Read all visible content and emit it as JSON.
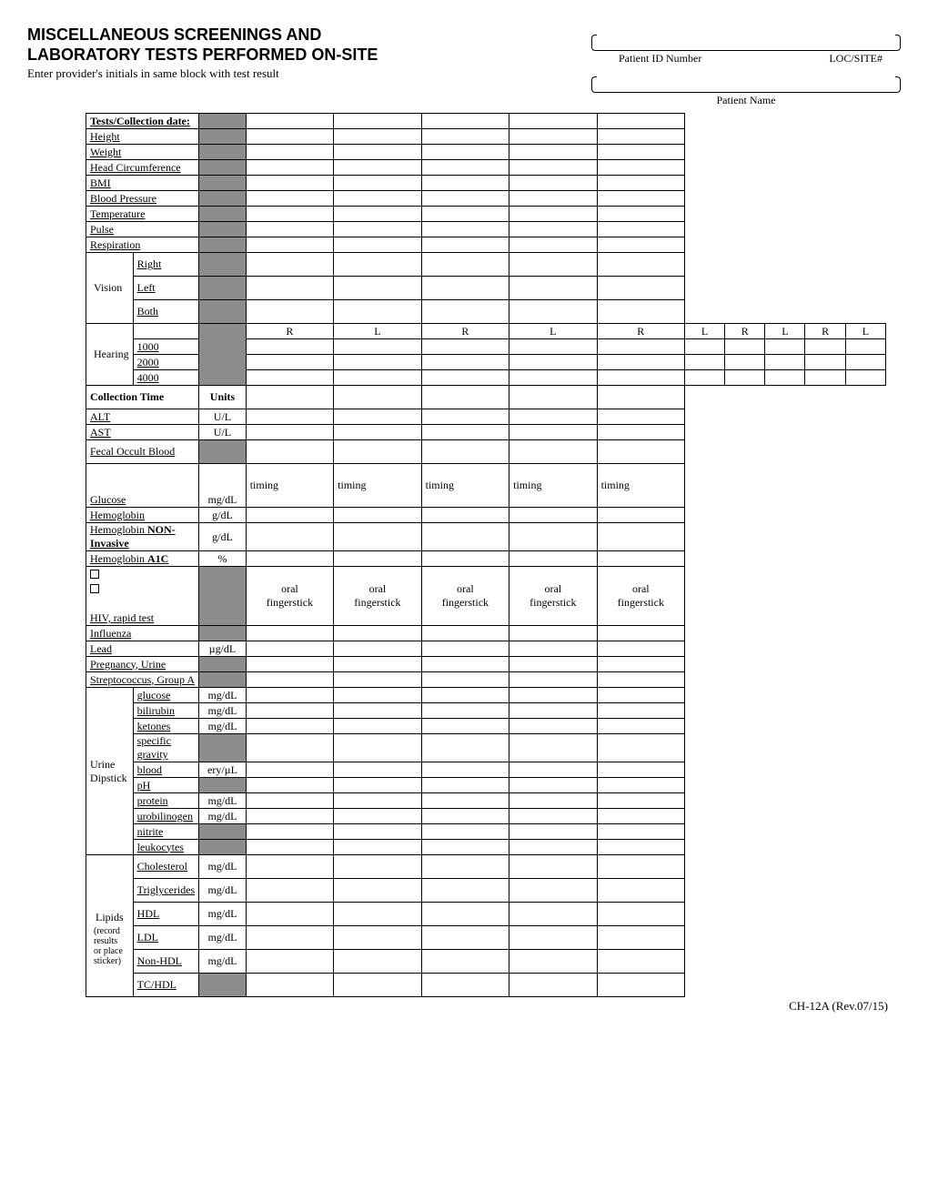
{
  "header": {
    "title_line1": "MISCELLANEOUS SCREENINGS AND",
    "title_line2": "LABORATORY TESTS PERFORMED ON-SITE",
    "subtitle": "Enter provider's initials in same block with test result",
    "patient_id_label": "Patient ID Number",
    "loc_site_label": "LOC/SITE#",
    "patient_name_label": "Patient Name"
  },
  "columns": {
    "RL_header": [
      "R",
      "L",
      "R",
      "L",
      "R",
      "L",
      "R",
      "L",
      "R",
      "L"
    ]
  },
  "section_top": {
    "row_header": "Tests/Collection date:",
    "rows": [
      "Height",
      "Weight",
      "Head Circumference",
      "BMI",
      "Blood Pressure",
      "Temperature",
      "Pulse",
      "Respiration"
    ]
  },
  "vision": {
    "label": "Vision",
    "subs": [
      "Right",
      "Left",
      "Both"
    ]
  },
  "hearing": {
    "label": "Hearing",
    "subs": [
      "1000",
      "2000",
      "4000"
    ]
  },
  "collection_time": {
    "label": "Collection Time",
    "units_label": "Units"
  },
  "lab_rows_1": [
    {
      "label": "ALT",
      "units": "U/L"
    },
    {
      "label": "AST",
      "units": "U/L"
    },
    {
      "label": "Fecal Occult Blood",
      "units": "",
      "grey": true,
      "tall": true
    }
  ],
  "glucose": {
    "label": "Glucose",
    "units": "mg/dL",
    "timing": "timing"
  },
  "lab_rows_2": [
    {
      "label": "Hemoglobin",
      "units": "g/dL"
    },
    {
      "label_html": "Hemoglobin <b>NON-Invasive</b>",
      "label": "Hemoglobin NON-Invasive",
      "units": "g/dL"
    },
    {
      "label_html": "Hemoglobin <b>A1C</b>",
      "label": "Hemoglobin A1C",
      "units": "%"
    }
  ],
  "hiv": {
    "label": "HIV, rapid test",
    "oral": "oral",
    "fingerstick": "fingerstick"
  },
  "lab_rows_3": [
    {
      "label": "Influenza",
      "units": "",
      "grey": true
    },
    {
      "label": "Lead",
      "units": "µg/dL"
    },
    {
      "label": "Pregnancy, Urine",
      "units": "",
      "grey": true
    },
    {
      "label": "Streptococcus, Group A",
      "units": "",
      "grey": true
    }
  ],
  "urine": {
    "label": "Urine Dipstick",
    "rows": [
      {
        "label": "glucose",
        "units": "mg/dL"
      },
      {
        "label": "bilirubin",
        "units": "mg/dL"
      },
      {
        "label": "ketones",
        "units": "mg/dL"
      },
      {
        "label": "specific gravity",
        "units": "",
        "grey": true,
        "h": 30
      },
      {
        "label": "blood",
        "units": "ery/µL"
      },
      {
        "label": "pH",
        "units": "",
        "grey": true
      },
      {
        "label": "protein",
        "units": "mg/dL"
      },
      {
        "label": "urobilinogen",
        "units": "mg/dL"
      },
      {
        "label": "nitrite",
        "units": "",
        "grey": true
      },
      {
        "label": "leukocytes",
        "units": "",
        "grey": true
      }
    ]
  },
  "lipids": {
    "label": "Lipids",
    "note": "(record results or place sticker)",
    "rows": [
      {
        "label": "Cholesterol",
        "units": "mg/dL"
      },
      {
        "label": "Triglycerides",
        "units": "mg/dL"
      },
      {
        "label": "HDL",
        "units": "mg/dL"
      },
      {
        "label": "LDL",
        "units": "mg/dL"
      },
      {
        "label": "Non-HDL",
        "units": "mg/dL"
      },
      {
        "label": "TC/HDL",
        "units": "",
        "grey": true
      }
    ]
  },
  "footer": "CH-12A (Rev.07/15)"
}
